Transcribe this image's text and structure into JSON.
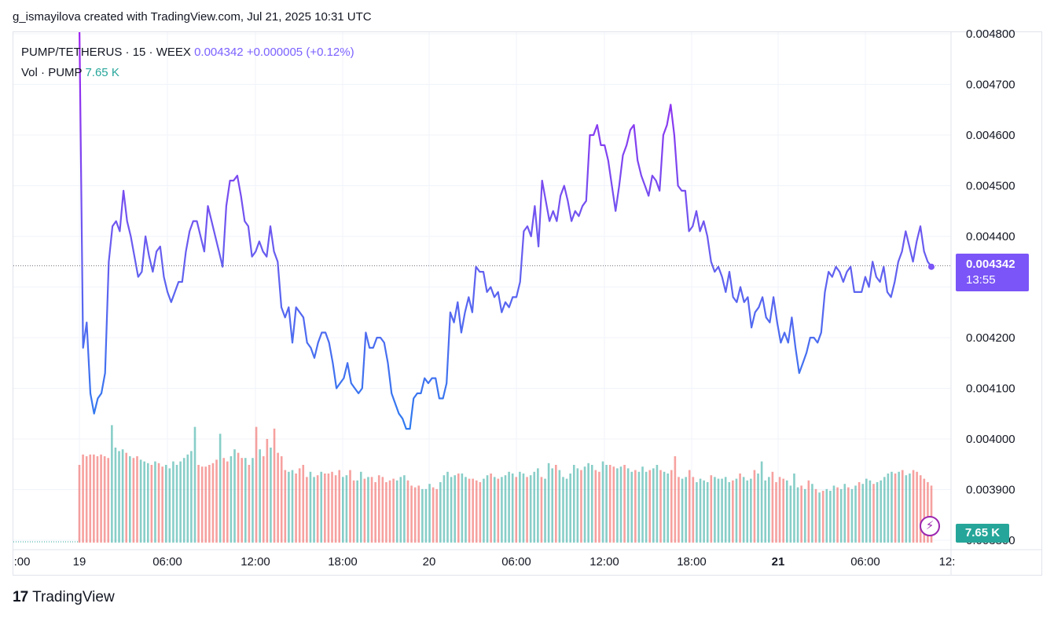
{
  "header": {
    "caption": "g_ismayilova created with TradingView.com, Jul 21, 2025 10:31 UTC"
  },
  "legend": {
    "symbol": "PUMP/TETHERUS",
    "interval": "15",
    "exchange": "WEEX",
    "price": "0.004342",
    "change": "+0.000005 (+0.12%)",
    "vol_label": "Vol",
    "vol_symbol": "PUMP",
    "vol_value": "7.65 K",
    "dot": "·"
  },
  "price_tag": {
    "price": "0.004342",
    "countdown": "13:55"
  },
  "vol_tag": "7.65 K",
  "footer": {
    "brand": "TradingView",
    "logo": "17"
  },
  "colors": {
    "line_top": "#9c27b0",
    "line_bottom": "#2962ff",
    "vol_up": "#26a69a",
    "vol_down": "#ef5350",
    "price_tag": "#7b55f7"
  },
  "icons": {
    "bolt": "lightning-icon"
  },
  "chart_data": {
    "type": "line",
    "title": "",
    "ylim": [
      0.0039,
      0.0048
    ],
    "y_ticks": [
      "0.004800",
      "0.004700",
      "0.004600",
      "0.004500",
      "0.004400",
      "0.004300",
      "0.004200",
      "0.004100",
      "0.004000",
      "0.003900",
      "0.003800"
    ],
    "x_ticks": [
      ":00",
      "19",
      "06:00",
      "12:00",
      "18:00",
      "20",
      "06:00",
      "12:00",
      "18:00",
      "21",
      "06:00",
      "12:"
    ],
    "x_tick_bold": [
      false,
      false,
      false,
      false,
      false,
      false,
      false,
      false,
      false,
      true,
      false,
      false
    ],
    "grid": true,
    "last_price": 0.004342,
    "series": [
      {
        "values": [
          0.00482,
          0.00418,
          0.00423,
          0.00409,
          0.00405,
          0.00408,
          0.00409,
          0.00413,
          0.00435,
          0.00442,
          0.00443,
          0.00441,
          0.00449,
          0.00443,
          0.0044,
          0.00436,
          0.00432,
          0.00433,
          0.0044,
          0.00436,
          0.00433,
          0.00437,
          0.00438,
          0.00432,
          0.00429,
          0.00427,
          0.00429,
          0.00431,
          0.00431,
          0.00437,
          0.00441,
          0.00443,
          0.00443,
          0.0044,
          0.00437,
          0.00446,
          0.00443,
          0.0044,
          0.00437,
          0.00434,
          0.00446,
          0.00451,
          0.00451,
          0.00452,
          0.00448,
          0.00443,
          0.00442,
          0.00436,
          0.00437,
          0.00439,
          0.00437,
          0.00436,
          0.00442,
          0.00437,
          0.00435,
          0.00426,
          0.00424,
          0.00426,
          0.00419,
          0.00426,
          0.00425,
          0.00424,
          0.00419,
          0.00418,
          0.00416,
          0.00419,
          0.00421,
          0.00421,
          0.00419,
          0.00415,
          0.0041,
          0.00411,
          0.00412,
          0.00415,
          0.00411,
          0.0041,
          0.00409,
          0.0041,
          0.00421,
          0.00418,
          0.00418,
          0.0042,
          0.0042,
          0.00419,
          0.00415,
          0.00409,
          0.00407,
          0.00405,
          0.00404,
          0.00402,
          0.00402,
          0.00408,
          0.00409,
          0.00409,
          0.00412,
          0.00411,
          0.00412,
          0.00412,
          0.00408,
          0.00408,
          0.00411,
          0.00425,
          0.00423,
          0.00427,
          0.00421,
          0.00425,
          0.00428,
          0.00425,
          0.00434,
          0.00433,
          0.00433,
          0.00429,
          0.0043,
          0.00428,
          0.00429,
          0.00425,
          0.00427,
          0.00426,
          0.00428,
          0.00428,
          0.00431,
          0.00441,
          0.00442,
          0.0044,
          0.00446,
          0.00438,
          0.00451,
          0.00447,
          0.00443,
          0.00445,
          0.00443,
          0.00448,
          0.0045,
          0.00447,
          0.00443,
          0.00445,
          0.00444,
          0.00446,
          0.00447,
          0.0046,
          0.0046,
          0.00462,
          0.00458,
          0.00458,
          0.00455,
          0.0045,
          0.00445,
          0.0045,
          0.00456,
          0.00458,
          0.00461,
          0.00462,
          0.00455,
          0.00452,
          0.0045,
          0.00448,
          0.00452,
          0.00451,
          0.00449,
          0.0046,
          0.00462,
          0.00466,
          0.0046,
          0.0045,
          0.00449,
          0.00449,
          0.00441,
          0.00442,
          0.00445,
          0.00441,
          0.00443,
          0.0044,
          0.00435,
          0.00433,
          0.00434,
          0.00432,
          0.00429,
          0.00433,
          0.00428,
          0.00427,
          0.0043,
          0.00427,
          0.00428,
          0.00422,
          0.00425,
          0.00426,
          0.00428,
          0.00424,
          0.00423,
          0.00428,
          0.00423,
          0.00419,
          0.00421,
          0.00419,
          0.00424,
          0.00418,
          0.00413,
          0.00415,
          0.00417,
          0.0042,
          0.0042,
          0.00419,
          0.00421,
          0.00429,
          0.00433,
          0.00432,
          0.00434,
          0.00433,
          0.00431,
          0.00433,
          0.00434,
          0.00429,
          0.00429,
          0.00429,
          0.00432,
          0.0043,
          0.00435,
          0.00432,
          0.00431,
          0.00434,
          0.00429,
          0.00428,
          0.00431,
          0.00435,
          0.00437,
          0.00441,
          0.00438,
          0.00435,
          0.00439,
          0.00442,
          0.00437,
          0.00435,
          0.00434
        ]
      }
    ],
    "volume": {
      "values": [
        0.45,
        0.51,
        0.5,
        0.51,
        0.51,
        0.5,
        0.51,
        0.5,
        0.49,
        0.68,
        0.55,
        0.53,
        0.54,
        0.52,
        0.5,
        0.49,
        0.5,
        0.48,
        0.47,
        0.46,
        0.45,
        0.47,
        0.46,
        0.44,
        0.45,
        0.43,
        0.47,
        0.45,
        0.47,
        0.49,
        0.51,
        0.53,
        0.67,
        0.45,
        0.44,
        0.44,
        0.45,
        0.46,
        0.48,
        0.63,
        0.49,
        0.47,
        0.5,
        0.54,
        0.52,
        0.49,
        0.49,
        0.45,
        0.49,
        0.67,
        0.54,
        0.5,
        0.6,
        0.55,
        0.66,
        0.52,
        0.5,
        0.42,
        0.41,
        0.42,
        0.4,
        0.43,
        0.45,
        0.38,
        0.41,
        0.38,
        0.39,
        0.41,
        0.4,
        0.4,
        0.41,
        0.39,
        0.42,
        0.38,
        0.39,
        0.42,
        0.36,
        0.36,
        0.41,
        0.37,
        0.38,
        0.38,
        0.35,
        0.39,
        0.38,
        0.35,
        0.36,
        0.37,
        0.36,
        0.38,
        0.39,
        0.36,
        0.33,
        0.32,
        0.33,
        0.31,
        0.31,
        0.34,
        0.32,
        0.31,
        0.35,
        0.39,
        0.41,
        0.38,
        0.39,
        0.4,
        0.4,
        0.38,
        0.37,
        0.37,
        0.36,
        0.35,
        0.37,
        0.39,
        0.4,
        0.38,
        0.37,
        0.38,
        0.39,
        0.41,
        0.4,
        0.38,
        0.41,
        0.4,
        0.38,
        0.39,
        0.41,
        0.43,
        0.38,
        0.37,
        0.46,
        0.43,
        0.45,
        0.42,
        0.38,
        0.37,
        0.4,
        0.45,
        0.43,
        0.42,
        0.44,
        0.46,
        0.45,
        0.42,
        0.41,
        0.47,
        0.45,
        0.45,
        0.44,
        0.43,
        0.44,
        0.45,
        0.43,
        0.41,
        0.42,
        0.41,
        0.44,
        0.41,
        0.42,
        0.43,
        0.45,
        0.42,
        0.41,
        0.4,
        0.42,
        0.5,
        0.38,
        0.37,
        0.38,
        0.42,
        0.38,
        0.35,
        0.37,
        0.36,
        0.35,
        0.39,
        0.38,
        0.37,
        0.37,
        0.38,
        0.35,
        0.36,
        0.37,
        0.4,
        0.38,
        0.36,
        0.37,
        0.42,
        0.4,
        0.47,
        0.36,
        0.38,
        0.41,
        0.35,
        0.38,
        0.37,
        0.36,
        0.33,
        0.4,
        0.32,
        0.33,
        0.31,
        0.36,
        0.34,
        0.31,
        0.29,
        0.3,
        0.31,
        0.3,
        0.33,
        0.32,
        0.31,
        0.34,
        0.32,
        0.31,
        0.33,
        0.35,
        0.34,
        0.37,
        0.36,
        0.34,
        0.35,
        0.36,
        0.38,
        0.4,
        0.41,
        0.4,
        0.41,
        0.42,
        0.39,
        0.4,
        0.42,
        0.41,
        0.39,
        0.37,
        0.35,
        0.33
      ],
      "up": [
        false,
        false,
        false,
        false,
        false,
        false,
        false,
        false,
        false,
        true,
        true,
        true,
        true,
        false,
        true,
        false,
        false,
        true,
        true,
        true,
        false,
        true,
        false,
        false,
        true,
        true,
        true,
        true,
        true,
        true,
        true,
        true,
        true,
        false,
        false,
        false,
        false,
        false,
        false,
        true,
        false,
        false,
        true,
        true,
        false,
        false,
        true,
        false,
        true,
        false,
        true,
        false,
        false,
        true,
        false,
        false,
        false,
        false,
        true,
        true,
        false,
        false,
        false,
        false,
        true,
        true,
        false,
        true,
        false,
        false,
        false,
        false,
        false,
        true,
        true,
        false,
        false,
        true,
        true,
        false,
        true,
        false,
        false,
        false,
        false,
        false,
        false,
        false,
        true,
        true,
        true,
        false,
        false,
        false,
        false,
        true,
        true,
        true,
        false,
        false,
        true,
        true,
        true,
        true,
        true,
        false,
        true,
        true,
        false,
        false,
        false,
        false,
        true,
        true,
        false,
        true,
        false,
        true,
        true,
        true,
        true,
        false,
        true,
        true,
        false,
        true,
        true,
        true,
        false,
        true,
        true,
        true,
        false,
        true,
        true,
        true,
        true,
        true,
        true,
        false,
        true,
        true,
        true,
        false,
        false,
        true,
        true,
        false,
        false,
        true,
        true,
        false,
        true,
        true,
        false,
        true,
        true,
        true,
        false,
        true,
        true,
        false,
        true,
        true,
        false,
        false,
        false,
        true,
        true,
        false,
        false,
        true,
        true,
        true,
        true,
        false,
        true,
        true,
        true,
        true,
        true,
        false,
        true,
        false,
        true,
        true,
        true,
        false,
        true,
        true,
        true,
        true,
        false,
        false,
        false,
        false,
        true,
        true,
        true,
        true,
        false,
        true,
        false,
        true,
        false,
        true,
        false,
        true,
        true,
        true,
        false,
        true,
        true,
        false,
        true,
        true,
        false,
        true,
        true,
        true,
        false,
        true,
        true,
        true,
        true,
        true,
        false,
        true,
        false,
        true,
        true,
        false
      ]
    }
  }
}
